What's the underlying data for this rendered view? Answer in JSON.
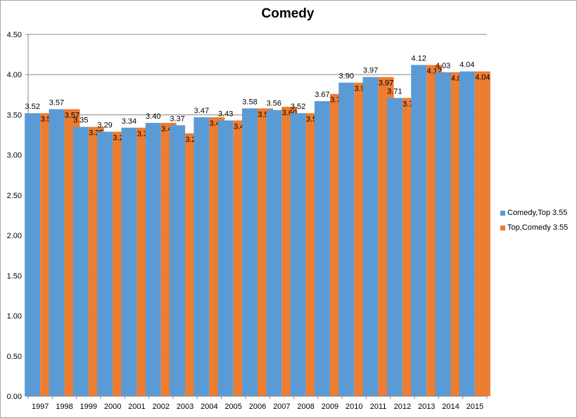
{
  "chart_data": {
    "type": "bar",
    "title": "Comedy",
    "xlabel": "",
    "ylabel": "",
    "categories": [
      "1997",
      "1998",
      "1999",
      "2000",
      "2001",
      "2002",
      "2003",
      "2004",
      "2005",
      "2006",
      "2007",
      "2008",
      "2009",
      "2010",
      "2011",
      "2012",
      "2013",
      "2014",
      "2015"
    ],
    "series": [
      {
        "name": "Comedy,Top 3.55",
        "color": "#5b9bd5",
        "values": [
          3.52,
          3.57,
          3.35,
          3.29,
          3.34,
          3.4,
          3.37,
          3.47,
          3.43,
          3.58,
          3.56,
          3.52,
          3.67,
          3.9,
          3.97,
          3.71,
          4.12,
          4.03,
          4.04
        ],
        "labels": [
          "3.52",
          "3.57",
          "3.35",
          "3.29",
          "3.34",
          "3.40",
          "3.37",
          "3.47",
          "3.43",
          "3.58",
          "3.56",
          "3.52",
          "3.67",
          "3.90",
          "3.97",
          "3.71",
          "4.12",
          "4.03",
          "4.04"
        ]
      },
      {
        "name": "Top,Comedy 3.55",
        "color": "#ed7d31",
        "values": [
          3.52,
          3.57,
          3.35,
          3.29,
          3.34,
          3.4,
          3.27,
          3.47,
          3.43,
          3.58,
          3.6,
          3.52,
          3.76,
          3.9,
          3.97,
          3.71,
          4.12,
          4.03,
          4.04
        ],
        "labels": [
          "3.52",
          "3.57",
          "3.35",
          "3.29",
          "3.34",
          "3.40",
          "3.27",
          "3.47",
          "3.43",
          "3.58",
          "3.60",
          "3.52",
          "3.76",
          "3.90",
          "3.97",
          "3.71",
          "4.12",
          "4.03",
          "4.04"
        ]
      }
    ],
    "ylim": [
      0,
      4.5
    ],
    "yticks": [
      "0.00",
      "0.50",
      "1.00",
      "1.50",
      "2.00",
      "2.50",
      "3.00",
      "3.50",
      "4.00",
      "4.50"
    ],
    "grid": true,
    "legend_position": "right"
  }
}
